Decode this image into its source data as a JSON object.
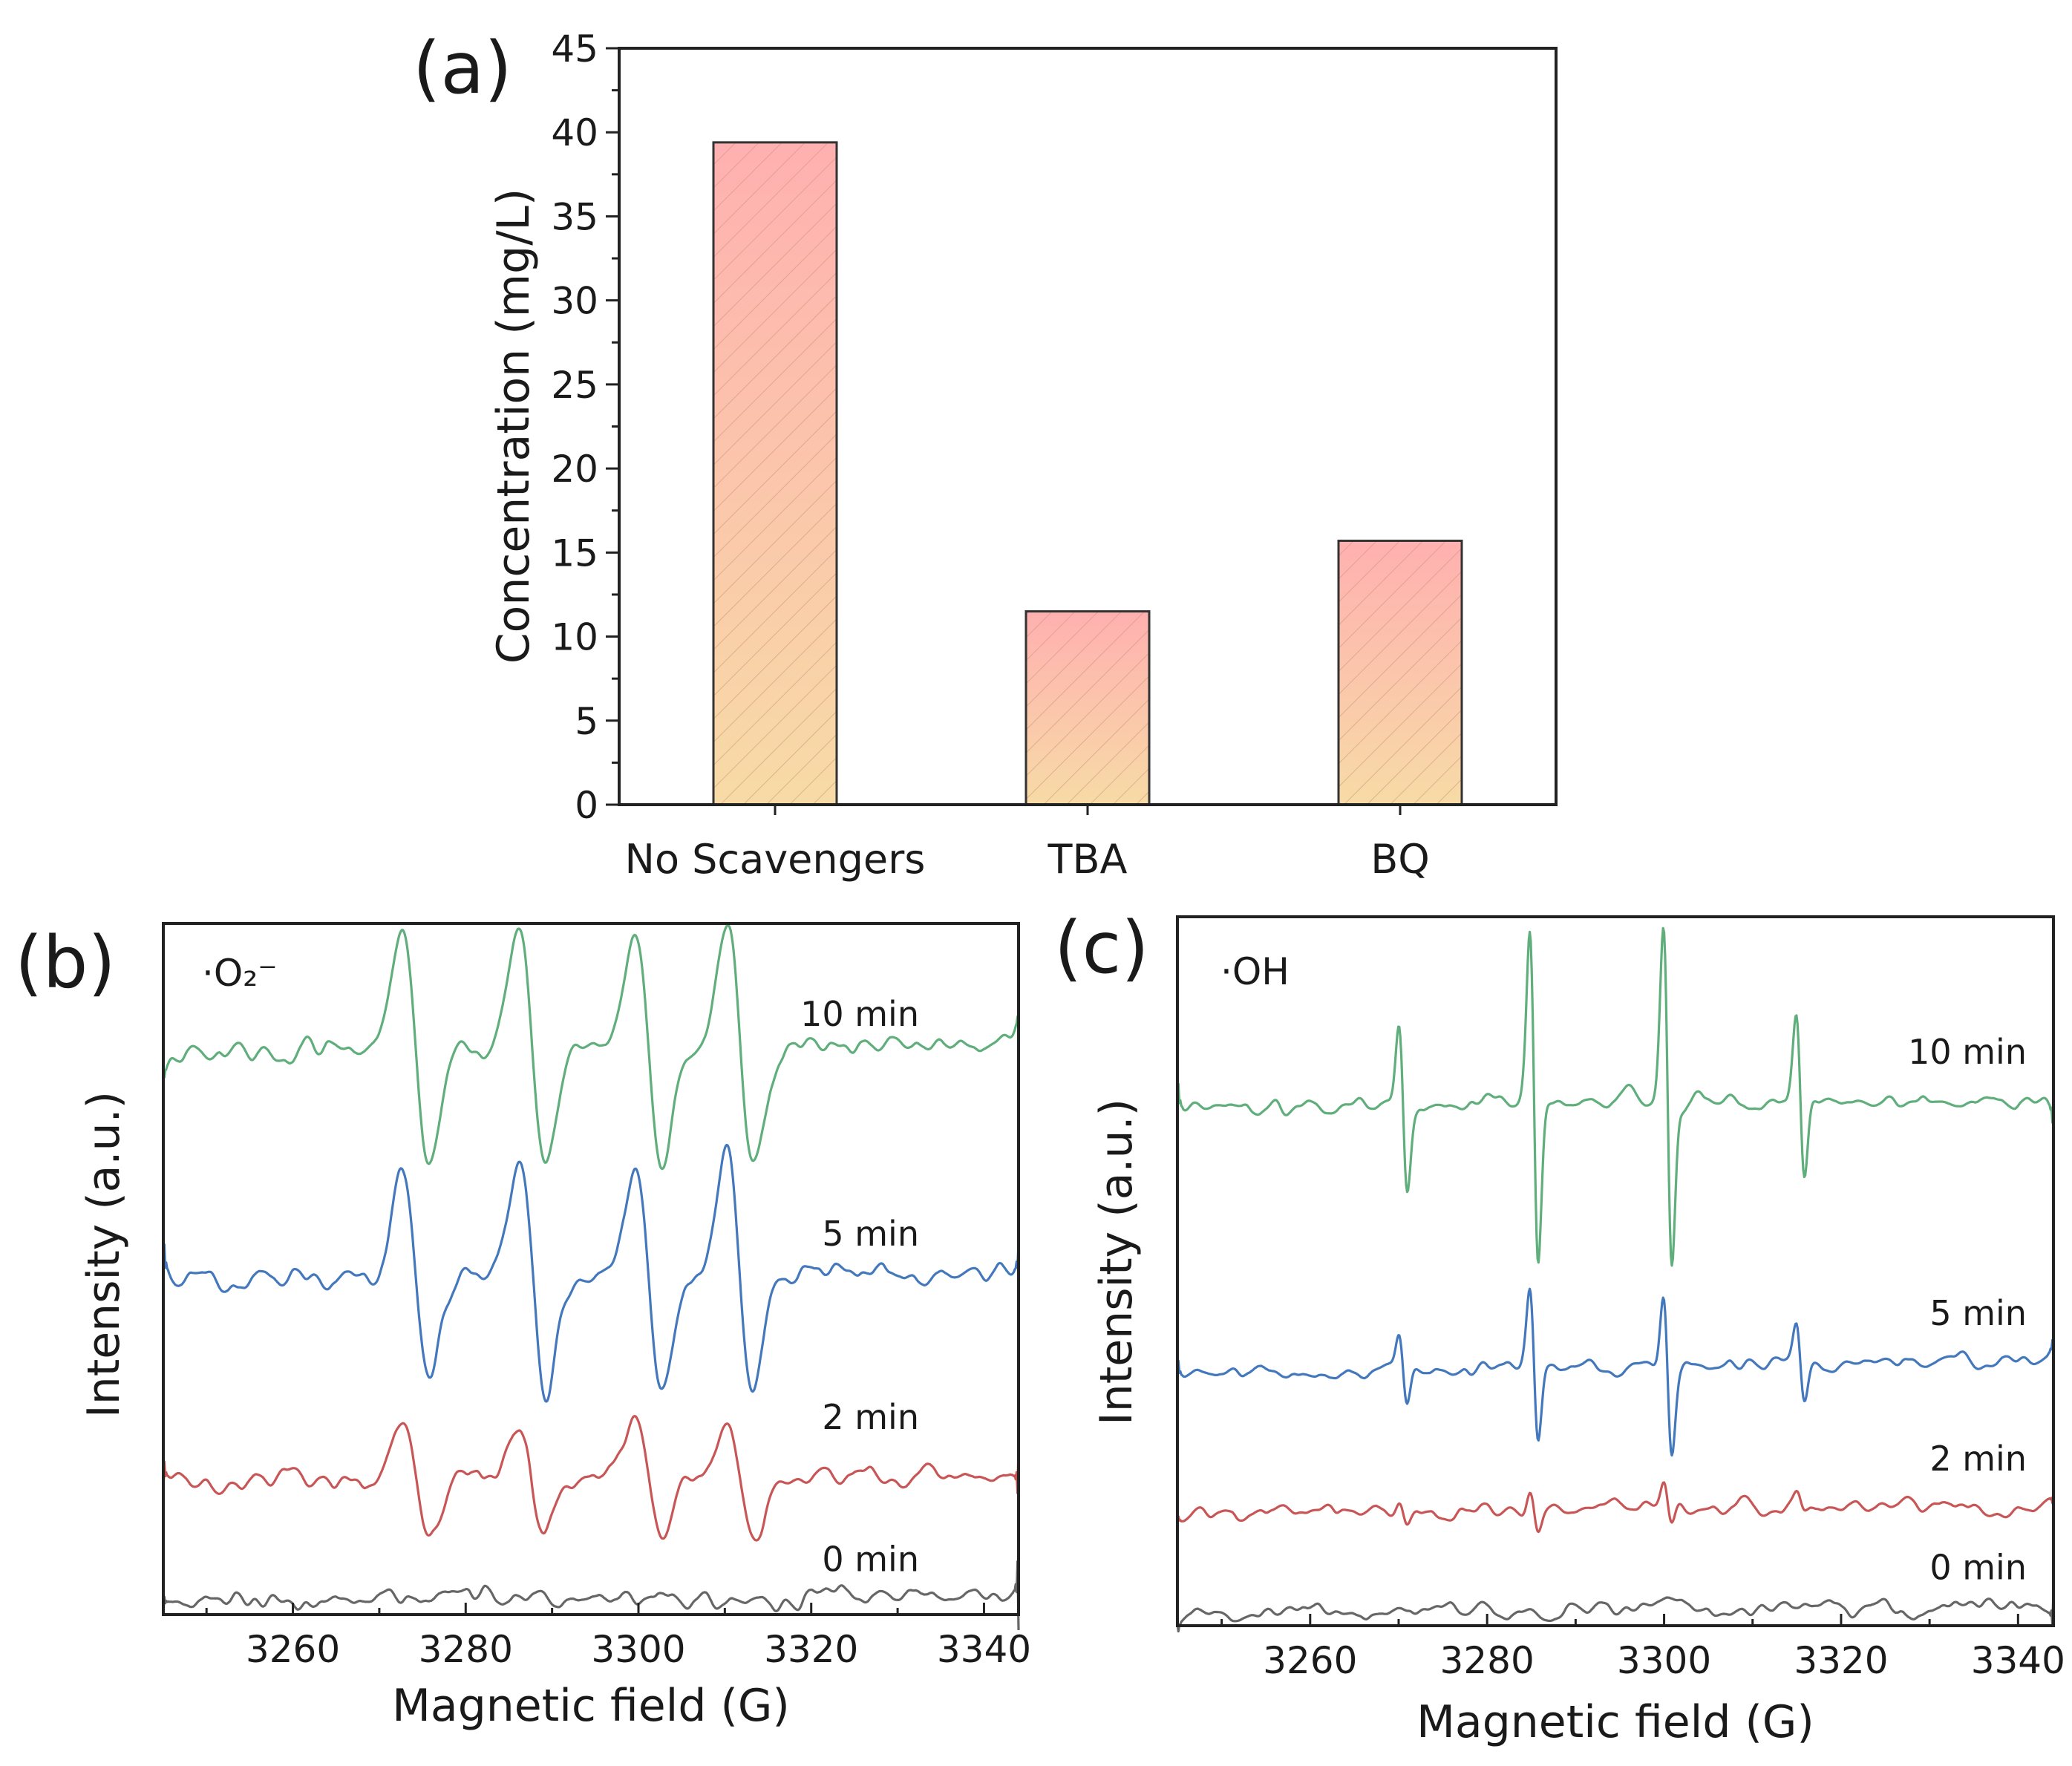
{
  "chart_data": [
    {
      "panel": "(a)",
      "type": "bar",
      "categories": [
        "No Scavengers",
        "TBA",
        "BQ"
      ],
      "values": [
        39.4,
        11.5,
        15.7
      ],
      "xlabel": "",
      "ylabel": "Concentration (mg/L)",
      "ylim": [
        0,
        45
      ],
      "yticks": [
        0,
        5,
        10,
        15,
        20,
        25,
        30,
        35,
        40,
        45
      ],
      "grid": false,
      "colors": {
        "top": "#ffb0b0",
        "bottom": "#f7dba6",
        "hatch": "#d9a58a",
        "edge": "#333333"
      }
    },
    {
      "panel": "(b)",
      "type": "line",
      "species": "·O₂⁻",
      "xlabel": "Magnetic field (G)",
      "ylabel": "Intensity (a.u.)",
      "xlim": [
        3245,
        3344
      ],
      "xticks": [
        3260,
        3280,
        3300,
        3320,
        3340
      ],
      "line_centers": [
        3274.2,
        3287.7,
        3301.2,
        3311.8
      ],
      "series": [
        {
          "name": "10 min",
          "color": "#5fae7b",
          "amplitude": 1.0,
          "baseline": 0.0
        },
        {
          "name": "5 min",
          "color": "#4478bc",
          "amplitude": 0.95,
          "baseline": -1.8
        },
        {
          "name": "2 min",
          "color": "#c95656",
          "amplitude": 0.5,
          "baseline": -3.4
        },
        {
          "name": "0 min",
          "color": "#666666",
          "amplitude": 0.0,
          "baseline": -4.35
        }
      ]
    },
    {
      "panel": "(c)",
      "type": "line",
      "species": "·OH",
      "xlabel": "Magnetic field (G)",
      "ylabel": "Intensity (a.u.)",
      "xlim": [
        3245,
        3344
      ],
      "xticks": [
        3260,
        3280,
        3300,
        3320,
        3340
      ],
      "line_centers": [
        3270.5,
        3285.3,
        3300.4,
        3315.4
      ],
      "relative_intensities": [
        1,
        2,
        2,
        1
      ],
      "series": [
        {
          "name": "10 min",
          "color": "#5fae7b",
          "amplitude": 1.0,
          "baseline": 0.0
        },
        {
          "name": "5 min",
          "color": "#4478bc",
          "amplitude": 0.45,
          "baseline": -1.95
        },
        {
          "name": "2 min",
          "color": "#c95656",
          "amplitude": 0.12,
          "baseline": -3.0
        },
        {
          "name": "0 min",
          "color": "#666666",
          "amplitude": 0.0,
          "baseline": -3.75
        }
      ]
    }
  ]
}
